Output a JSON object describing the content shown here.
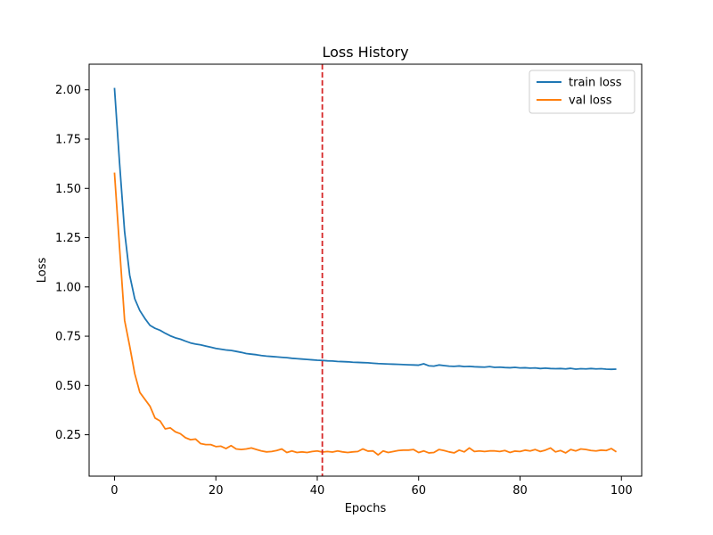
{
  "chart_data": {
    "type": "line",
    "title": "Loss History",
    "xlabel": "Epochs",
    "ylabel": "Loss",
    "xlim": [
      -5,
      104
    ],
    "ylim": [
      0.04,
      2.13
    ],
    "xticks": [
      0,
      20,
      40,
      60,
      80,
      100
    ],
    "yticks": [
      0.25,
      0.5,
      0.75,
      1.0,
      1.25,
      1.5,
      1.75,
      2.0
    ],
    "ytick_labels": [
      "0.25",
      "0.50",
      "0.75",
      "1.00",
      "1.25",
      "1.50",
      "1.75",
      "2.00"
    ],
    "grid": false,
    "legend_position": "top-right",
    "vline": {
      "x": 41,
      "color": "#d62728",
      "style": "dashed"
    },
    "series": [
      {
        "name": "train loss",
        "color": "#1f77b4",
        "values": [
          2.01,
          1.63,
          1.28,
          1.06,
          0.94,
          0.88,
          0.84,
          0.805,
          0.79,
          0.78,
          0.765,
          0.752,
          0.742,
          0.735,
          0.725,
          0.716,
          0.71,
          0.706,
          0.7,
          0.694,
          0.688,
          0.684,
          0.68,
          0.678,
          0.673,
          0.668,
          0.662,
          0.659,
          0.656,
          0.652,
          0.649,
          0.647,
          0.645,
          0.643,
          0.641,
          0.638,
          0.636,
          0.634,
          0.632,
          0.63,
          0.628,
          0.627,
          0.625,
          0.624,
          0.622,
          0.621,
          0.62,
          0.618,
          0.617,
          0.616,
          0.615,
          0.613,
          0.611,
          0.61,
          0.609,
          0.608,
          0.607,
          0.606,
          0.605,
          0.604,
          0.603,
          0.61,
          0.6,
          0.598,
          0.604,
          0.601,
          0.598,
          0.597,
          0.599,
          0.596,
          0.597,
          0.595,
          0.594,
          0.593,
          0.596,
          0.592,
          0.593,
          0.591,
          0.59,
          0.592,
          0.589,
          0.59,
          0.588,
          0.589,
          0.586,
          0.588,
          0.586,
          0.585,
          0.586,
          0.584,
          0.587,
          0.583,
          0.585,
          0.584,
          0.586,
          0.584,
          0.585,
          0.583,
          0.582,
          0.583
        ]
      },
      {
        "name": "val loss",
        "color": "#ff7f0e",
        "values": [
          1.58,
          1.2,
          0.83,
          0.7,
          0.56,
          0.465,
          0.43,
          0.395,
          0.335,
          0.32,
          0.28,
          0.285,
          0.265,
          0.255,
          0.235,
          0.225,
          0.228,
          0.205,
          0.2,
          0.2,
          0.19,
          0.192,
          0.18,
          0.195,
          0.178,
          0.175,
          0.178,
          0.183,
          0.175,
          0.168,
          0.163,
          0.165,
          0.17,
          0.178,
          0.16,
          0.168,
          0.16,
          0.163,
          0.16,
          0.165,
          0.168,
          0.162,
          0.165,
          0.162,
          0.168,
          0.163,
          0.16,
          0.163,
          0.165,
          0.178,
          0.167,
          0.168,
          0.148,
          0.168,
          0.16,
          0.165,
          0.17,
          0.172,
          0.172,
          0.175,
          0.16,
          0.168,
          0.158,
          0.16,
          0.175,
          0.17,
          0.163,
          0.158,
          0.172,
          0.163,
          0.183,
          0.165,
          0.168,
          0.165,
          0.168,
          0.168,
          0.165,
          0.17,
          0.16,
          0.167,
          0.165,
          0.172,
          0.168,
          0.175,
          0.165,
          0.172,
          0.183,
          0.163,
          0.17,
          0.158,
          0.175,
          0.168,
          0.178,
          0.175,
          0.17,
          0.168,
          0.172,
          0.17,
          0.18,
          0.163
        ]
      }
    ]
  }
}
